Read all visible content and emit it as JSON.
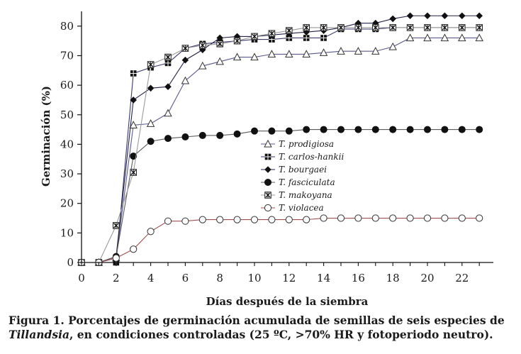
{
  "chart_data": {
    "type": "line",
    "title": "",
    "xlabel": "Días después de la siembra",
    "ylabel": "Germinación (%)",
    "xlim": [
      0,
      23
    ],
    "ylim": [
      0,
      85
    ],
    "xticks": [
      0,
      2,
      4,
      6,
      8,
      10,
      12,
      14,
      16,
      18,
      20,
      22
    ],
    "yticks": [
      0,
      10,
      20,
      30,
      40,
      50,
      60,
      70,
      80
    ],
    "legend_position": "center-right",
    "grid": false,
    "series": [
      {
        "name": "T. prodigiosa",
        "color": "#5a5a8c",
        "marker": "open-triangle",
        "x": [
          0,
          1,
          2,
          3,
          4,
          5,
          6,
          7,
          8,
          9,
          10,
          11,
          12,
          13,
          14,
          15,
          16,
          17,
          18,
          19,
          20,
          21,
          22,
          23
        ],
        "values": [
          0,
          0,
          1.5,
          46.5,
          47,
          50.5,
          61.5,
          66.5,
          68,
          69.5,
          69.5,
          70.5,
          70.5,
          70.5,
          71,
          71.5,
          71.5,
          71.5,
          73,
          76,
          76,
          76,
          76,
          76
        ]
      },
      {
        "name": "T. carlos-hankii",
        "color": "#3a3a6e",
        "marker": "filled-square-cross",
        "x": [
          0,
          1,
          2,
          3,
          4,
          5,
          6,
          7,
          8,
          9,
          10,
          11,
          12,
          13,
          14,
          15,
          16,
          17,
          18,
          19,
          20,
          21,
          22,
          23
        ],
        "values": [
          0,
          0,
          0,
          64,
          66,
          67.5,
          72.5,
          74,
          74.5,
          75,
          75.5,
          75.5,
          76,
          76,
          76,
          79,
          79,
          79,
          79.5,
          79.5,
          79.5,
          79.5,
          79.5,
          79.5
        ]
      },
      {
        "name": "T. bourgaei",
        "color": "#22224a",
        "marker": "filled-diamond",
        "x": [
          0,
          1,
          2,
          3,
          4,
          5,
          6,
          7,
          8,
          9,
          10,
          11,
          12,
          13,
          14,
          15,
          16,
          17,
          18,
          19,
          20,
          21,
          22,
          23
        ],
        "values": [
          0,
          0,
          2,
          55,
          59,
          59.5,
          68.5,
          72,
          76,
          76.5,
          76.5,
          77,
          77.5,
          78,
          78.5,
          79.5,
          81,
          81,
          82.5,
          83.5,
          83.5,
          83.5,
          83.5,
          83.5
        ]
      },
      {
        "name": "T. fasciculata",
        "color": "#5a5a5a",
        "marker": "filled-circle",
        "x": [
          0,
          1,
          2,
          3,
          4,
          5,
          6,
          7,
          8,
          9,
          10,
          11,
          12,
          13,
          14,
          15,
          16,
          17,
          18,
          19,
          20,
          21,
          22,
          23
        ],
        "values": [
          0,
          0,
          2,
          36,
          41,
          42,
          42.5,
          43,
          43,
          43.5,
          44.5,
          44.5,
          44.5,
          45,
          45,
          45,
          45,
          45,
          45,
          45,
          45,
          45,
          45,
          45
        ]
      },
      {
        "name": "T. makoyana",
        "color": "#9a9a9a",
        "marker": "star-square",
        "x": [
          0,
          1,
          2,
          3,
          4,
          5,
          6,
          7,
          8,
          9,
          10,
          11,
          12,
          13,
          14,
          15,
          16,
          17,
          18,
          19,
          20,
          21,
          22,
          23
        ],
        "values": [
          0,
          0,
          12.5,
          30.5,
          67,
          69.5,
          72.5,
          73.5,
          74,
          75,
          76.5,
          77.5,
          78.5,
          79.5,
          79.5,
          79.5,
          79.5,
          79.5,
          79.5,
          79.5,
          79.5,
          79.5,
          79.5,
          79.5
        ]
      },
      {
        "name": "T. violacea",
        "color": "#a05050",
        "marker": "open-circle",
        "x": [
          0,
          1,
          2,
          3,
          4,
          5,
          6,
          7,
          8,
          9,
          10,
          11,
          12,
          13,
          14,
          15,
          16,
          17,
          18,
          19,
          20,
          21,
          22,
          23
        ],
        "values": [
          0,
          0,
          1.5,
          4.5,
          10.5,
          14,
          14,
          14.5,
          14.5,
          14.5,
          14.5,
          14.5,
          14.5,
          14.5,
          15,
          15,
          15,
          15,
          15,
          15,
          15,
          15,
          15,
          15
        ]
      }
    ]
  },
  "caption": {
    "label": "Figura 1.",
    "text_before": " Porcentajes de germinación acumulada de semillas de seis especies de ",
    "italic": "Tillandsia",
    "text_after": ", en condiciones controladas (25 ºC, >70% HR y fotoperiodo neutro)."
  }
}
